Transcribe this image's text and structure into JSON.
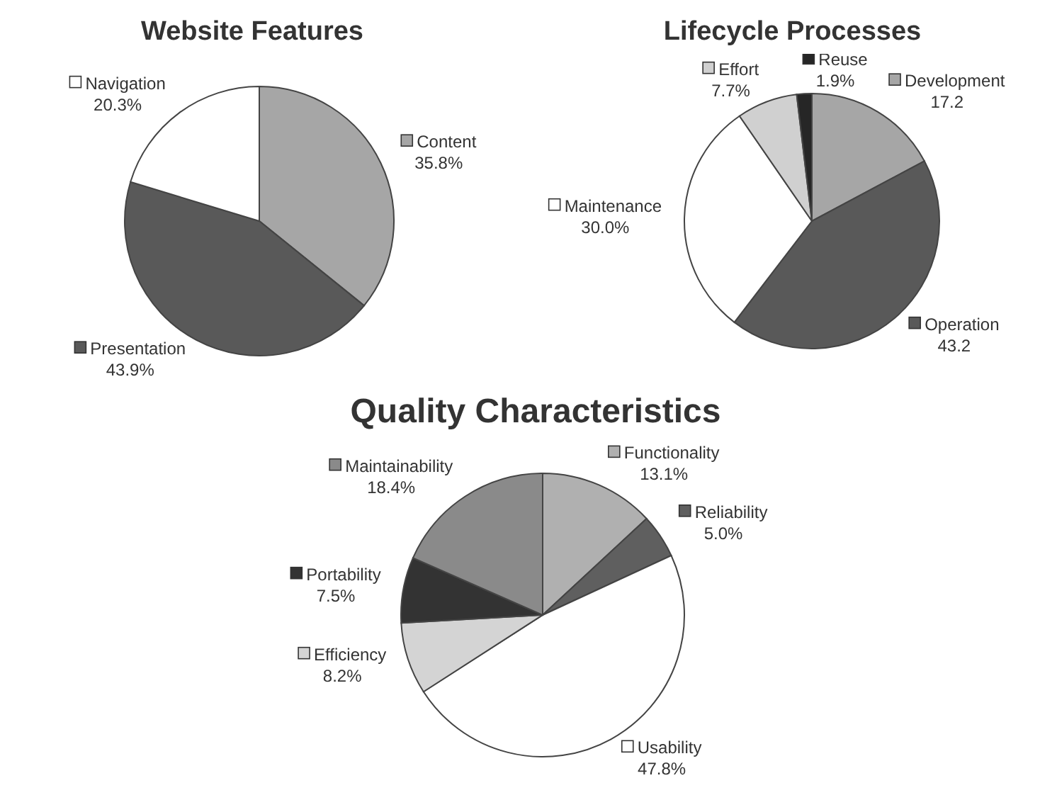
{
  "chart_data": [
    {
      "type": "pie",
      "legend": "right",
      "title": "Website Features",
      "categories": [
        "Content",
        "Presentation",
        "Navigation"
      ],
      "values": [
        35.8,
        43.9,
        20.3
      ],
      "value_labels": [
        "35.8%",
        "43.9%",
        "20.3%"
      ],
      "colors": [
        "#a6a6a6",
        "#595959",
        "#ffffff"
      ]
    },
    {
      "type": "pie",
      "legend": "right",
      "title": "Lifecycle Processes",
      "categories": [
        "Development",
        "Operation",
        "Maintenance",
        "Effort",
        "Reuse"
      ],
      "values": [
        17.2,
        43.2,
        30.0,
        7.7,
        1.9
      ],
      "value_labels": [
        "17.2",
        "43.2",
        "30.0%",
        "7.7%",
        "1.9%"
      ],
      "colors": [
        "#a6a6a6",
        "#595959",
        "#ffffff",
        "#d0d0d0",
        "#262626"
      ]
    },
    {
      "type": "pie",
      "legend": "right",
      "title": "Quality Characteristics",
      "categories": [
        "Functionality",
        "Reliability",
        "Usability",
        "Efficiency",
        "Portability",
        "Maintainability"
      ],
      "values": [
        13.1,
        5.0,
        47.8,
        8.2,
        7.5,
        18.4
      ],
      "value_labels": [
        "13.1%",
        "5.0%",
        "47.8%",
        "8.2%",
        "7.5%",
        "18.4%"
      ],
      "colors": [
        "#b0b0b0",
        "#5f5f5f",
        "#ffffff",
        "#d4d4d4",
        "#333333",
        "#8a8a8a"
      ]
    }
  ]
}
